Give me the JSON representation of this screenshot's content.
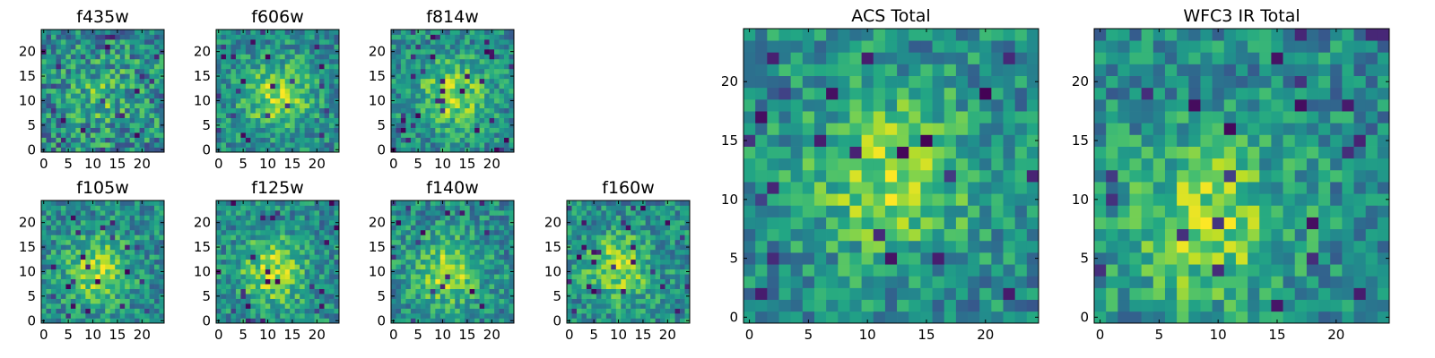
{
  "colors": {
    "colormap": "viridis",
    "low": "#440154",
    "mid": "#21918c",
    "high": "#fde725",
    "frame": "#000000",
    "background": "#ffffff"
  },
  "chart_data": [
    {
      "type": "heatmap",
      "title": "f435w",
      "grid": "25x25",
      "cmap": "viridis",
      "xlim": [
        -0.5,
        24.5
      ],
      "ylim": [
        -0.5,
        24.5
      ],
      "xticks": [
        "0",
        "5",
        "10",
        "15",
        "20"
      ],
      "yticks": [
        "0",
        "5",
        "10",
        "15",
        "20"
      ],
      "pattern": "noisy",
      "peak": [
        12,
        11
      ]
    },
    {
      "type": "heatmap",
      "title": "f606w",
      "grid": "25x25",
      "cmap": "viridis",
      "xlim": [
        -0.5,
        24.5
      ],
      "ylim": [
        -0.5,
        24.5
      ],
      "xticks": [
        "0",
        "5",
        "10",
        "15",
        "20"
      ],
      "yticks": [
        "0",
        "5",
        "10",
        "15",
        "20"
      ],
      "pattern": "central",
      "peak": [
        12,
        11
      ]
    },
    {
      "type": "heatmap",
      "title": "f814w",
      "grid": "25x25",
      "cmap": "viridis",
      "xlim": [
        -0.5,
        24.5
      ],
      "ylim": [
        -0.5,
        24.5
      ],
      "xticks": [
        "0",
        "5",
        "10",
        "15",
        "20"
      ],
      "yticks": [
        "0",
        "5",
        "10",
        "15",
        "20"
      ],
      "pattern": "central",
      "peak": [
        12,
        11
      ]
    },
    {
      "type": "heatmap",
      "title": "f105w",
      "grid": "25x25",
      "cmap": "viridis",
      "xlim": [
        -0.5,
        24.5
      ],
      "ylim": [
        -0.5,
        24.5
      ],
      "xticks": [
        "0",
        "5",
        "10",
        "15",
        "20"
      ],
      "yticks": [
        "0",
        "5",
        "10",
        "15",
        "20"
      ],
      "pattern": "central",
      "peak": [
        11,
        10
      ]
    },
    {
      "type": "heatmap",
      "title": "f125w",
      "grid": "25x25",
      "cmap": "viridis",
      "xlim": [
        -0.5,
        24.5
      ],
      "ylim": [
        -0.5,
        24.5
      ],
      "xticks": [
        "0",
        "5",
        "10",
        "15",
        "20"
      ],
      "yticks": [
        "0",
        "5",
        "10",
        "15",
        "20"
      ],
      "pattern": "central",
      "peak": [
        11,
        10
      ]
    },
    {
      "type": "heatmap",
      "title": "f140w",
      "grid": "25x25",
      "cmap": "viridis",
      "xlim": [
        -0.5,
        24.5
      ],
      "ylim": [
        -0.5,
        24.5
      ],
      "xticks": [
        "0",
        "5",
        "10",
        "15",
        "20"
      ],
      "yticks": [
        "0",
        "5",
        "10",
        "15",
        "20"
      ],
      "pattern": "central",
      "peak": [
        11,
        10
      ]
    },
    {
      "type": "heatmap",
      "title": "f160w",
      "grid": "25x25",
      "cmap": "viridis",
      "xlim": [
        -0.5,
        24.5
      ],
      "ylim": [
        -0.5,
        24.5
      ],
      "xticks": [
        "0",
        "5",
        "10",
        "15",
        "20"
      ],
      "yticks": [
        "0",
        "5",
        "10",
        "15",
        "20"
      ],
      "pattern": "central",
      "peak": [
        10,
        11
      ]
    },
    {
      "type": "heatmap",
      "title": "ACS Total",
      "grid": "25x25",
      "cmap": "viridis",
      "xlim": [
        -0.5,
        24.5
      ],
      "ylim": [
        -0.5,
        24.5
      ],
      "xticks": [
        "0",
        "5",
        "10",
        "15",
        "20"
      ],
      "yticks": [
        "0",
        "5",
        "10",
        "15",
        "20"
      ],
      "pattern": "central",
      "peak": [
        12,
        12
      ]
    },
    {
      "type": "heatmap",
      "title": "WFC3 IR Total",
      "grid": "25x25",
      "cmap": "viridis",
      "xlim": [
        -0.5,
        24.5
      ],
      "ylim": [
        -0.5,
        24.5
      ],
      "xticks": [
        "0",
        "5",
        "10",
        "15",
        "20"
      ],
      "yticks": [
        "0",
        "5",
        "10",
        "15",
        "20"
      ],
      "pattern": "central",
      "peak": [
        9,
        8
      ]
    }
  ]
}
